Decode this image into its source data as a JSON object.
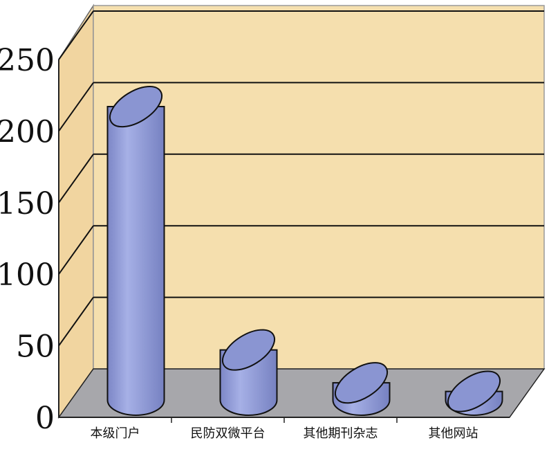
{
  "chart_data": {
    "type": "bar",
    "style": "3d-cylinder",
    "categories": [
      "本级门户",
      "民防双微平台",
      "其他期刊杂志",
      "其他网站"
    ],
    "values": [
      205,
      35,
      12,
      6
    ],
    "ylim": [
      0,
      250
    ],
    "yticks": [
      0,
      50,
      100,
      150,
      200,
      250
    ],
    "grid": true,
    "legend": "none",
    "colors": {
      "bar": "#8f9ad6",
      "bar_top": "#8a95d2",
      "back_wall": "#f5dfae",
      "side_wall": "#f1d5a0",
      "floor": "#a7a7ab",
      "grid": "#111111"
    }
  }
}
